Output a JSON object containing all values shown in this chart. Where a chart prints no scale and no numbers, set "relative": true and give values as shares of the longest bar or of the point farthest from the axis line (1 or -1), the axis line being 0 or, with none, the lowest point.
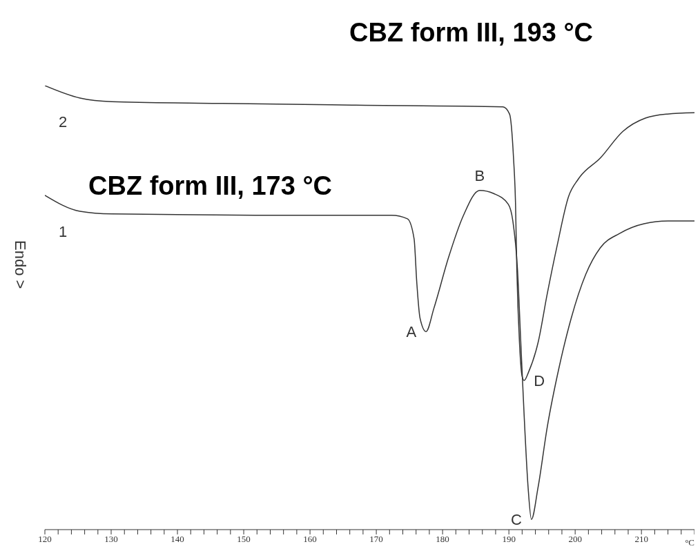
{
  "chart_data": {
    "type": "line",
    "relative": true,
    "ylabel": "Endo >",
    "xlabel": "°C",
    "xlim": [
      120,
      218
    ],
    "xticks": [
      120,
      {
        "value": 122,
        "label": null
      },
      {
        "value": 124,
        "label": null
      },
      {
        "value": 126,
        "label": null
      },
      {
        "value": 128,
        "label": null
      },
      130,
      {
        "value": 132,
        "label": null
      },
      {
        "value": 134,
        "label": null
      },
      {
        "value": 136,
        "label": null
      },
      {
        "value": 138,
        "label": null
      },
      140,
      {
        "value": 142,
        "label": null
      },
      {
        "value": 144,
        "label": null
      },
      {
        "value": 146,
        "label": null
      },
      {
        "value": 148,
        "label": null
      },
      150,
      {
        "value": 152,
        "label": null
      },
      {
        "value": 154,
        "label": null
      },
      {
        "value": 156,
        "label": null
      },
      {
        "value": 158,
        "label": null
      },
      160,
      {
        "value": 162,
        "label": null
      },
      {
        "value": 164,
        "label": null
      },
      {
        "value": 166,
        "label": null
      },
      {
        "value": 168,
        "label": null
      },
      170,
      {
        "value": 172,
        "label": null
      },
      {
        "value": 174,
        "label": null
      },
      {
        "value": 176,
        "label": null
      },
      {
        "value": 178,
        "label": null
      },
      180,
      {
        "value": 182,
        "label": null
      },
      {
        "value": 184,
        "label": null
      },
      {
        "value": 186,
        "label": null
      },
      {
        "value": 188,
        "label": null
      },
      190,
      {
        "value": 192,
        "label": null
      },
      {
        "value": 194,
        "label": null
      },
      {
        "value": 196,
        "label": null
      },
      {
        "value": 198,
        "label": null
      },
      200,
      {
        "value": 202,
        "label": null
      },
      {
        "value": 204,
        "label": null
      },
      {
        "value": 206,
        "label": null
      },
      {
        "value": 208,
        "label": null
      },
      210,
      {
        "value": 212,
        "label": null
      },
      {
        "value": 214,
        "label": null
      },
      {
        "value": 216,
        "label": null
      },
      {
        "value": 218,
        "label": null
      }
    ],
    "series": [
      {
        "name": "2",
        "color": "#333333",
        "x": [
          120,
          125.3,
          130.1,
          146.8,
          166.9,
          189.1,
          190.1,
          190.7,
          191.0,
          191.2,
          191.6,
          192.0,
          192.3,
          193.0,
          194.4,
          195.8,
          197.3,
          199.0,
          200.5,
          203.8,
          207.2,
          210.6,
          213.9,
          218
        ],
        "values": [
          1.0,
          0.972,
          0.964,
          0.96,
          0.956,
          0.952,
          0.936,
          0.837,
          0.736,
          0.586,
          0.421,
          0.345,
          0.336,
          0.356,
          0.421,
          0.532,
          0.641,
          0.75,
          0.79,
          0.837,
          0.897,
          0.927,
          0.936,
          0.939
        ]
      },
      {
        "name": "1",
        "color": "#333333",
        "x": [
          120,
          125.3,
          130.1,
          153.5,
          172.3,
          174.7,
          175.7,
          176.1,
          176.6,
          177.5,
          178.7,
          180.9,
          183.1,
          185.6,
          187.7,
          189.9,
          190.6,
          191.3,
          191.8,
          192.3,
          192.9,
          193.4,
          194.4,
          195.8,
          197.6,
          199.4,
          201.6,
          203.8,
          206.7,
          210.4,
          214.0,
          218
        ],
        "values": [
          0.753,
          0.717,
          0.711,
          0.708,
          0.708,
          0.7,
          0.655,
          0.558,
          0.476,
          0.446,
          0.499,
          0.613,
          0.706,
          0.764,
          0.757,
          0.733,
          0.695,
          0.586,
          0.421,
          0.258,
          0.095,
          0.023,
          0.095,
          0.232,
          0.367,
          0.476,
          0.575,
          0.635,
          0.667,
          0.689,
          0.695,
          0.695
        ]
      }
    ],
    "annotations": [
      "CBZ form III, 193 °C",
      "CBZ form III, 173 °C",
      {
        "text": "A",
        "x": 177.5,
        "y": 0.446
      },
      {
        "text": "B",
        "x": 185.6,
        "y": 0.764
      },
      {
        "text": "C",
        "x": 193.4,
        "y": 0.023
      },
      {
        "text": "D",
        "x": 192.3,
        "y": 0.336
      }
    ],
    "tick_labels": "x"
  }
}
